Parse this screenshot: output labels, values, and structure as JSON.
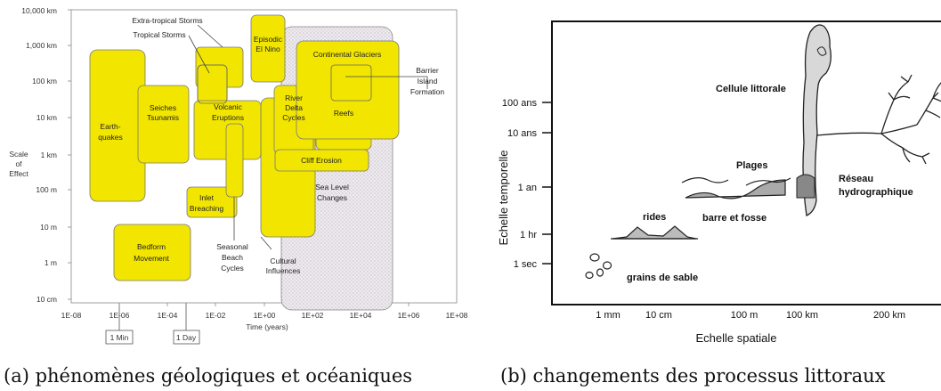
{
  "panel_a": {
    "y_axis_title": [
      "Scale",
      "of",
      "Effect"
    ],
    "y_ticks": [
      "10,000 km",
      "1,000 km",
      "100 km",
      "10 km",
      "1 km",
      "100 m",
      "10 m",
      "1 m",
      "10 cm"
    ],
    "x_ticks": [
      "1E-08",
      "1E-06",
      "1E-04",
      "1E-02",
      "1E+00",
      "1E+02",
      "1E+04",
      "1E+06",
      "1E+08"
    ],
    "x_axis_title": "Time (years)",
    "ref_boxes": [
      "1 Min",
      "1 Day"
    ],
    "phenomena": {
      "extratropical_storms": "Extra-tropical Storms",
      "tropical_storms": "Tropical Storms",
      "episodic_el_nino": [
        "Episodic",
        "El Nino"
      ],
      "continental_glaciers": "Continental Glaciers",
      "barrier_island": [
        "Barrier",
        "Island",
        "Formation"
      ],
      "seiches": [
        "Seiches",
        "Tsunamis"
      ],
      "earthquakes": [
        "Earth-",
        "quakes"
      ],
      "volcanic": [
        "Volcanic",
        "Eruptions"
      ],
      "river_delta": [
        "River",
        "Delta",
        "Cycles"
      ],
      "reefs": "Reefs",
      "cliff_erosion": "Cliff Erosion",
      "sea_level": [
        "Sea Level",
        "Changes"
      ],
      "inlet": [
        "Inlet",
        "Breaching"
      ],
      "bedform": [
        "Bedform",
        "Movement"
      ],
      "seasonal_beach": [
        "Seasonal",
        "Beach",
        "Cycles"
      ],
      "cultural": [
        "Cultural",
        "Influences"
      ]
    },
    "colors": {
      "fill": "#f2e600",
      "stroke": "#777777",
      "sea_level_fill": "#ece8ec"
    }
  },
  "panel_b": {
    "y_axis_title": "Echelle temporelle",
    "x_axis_title": "Echelle spatiale",
    "y_ticks": [
      "100 ans",
      "10 ans",
      "1 an",
      "1 hr",
      "1 sec"
    ],
    "x_ticks": [
      "1 mm",
      "10 cm",
      "100 m",
      "100 km",
      "200 km"
    ],
    "labels": {
      "cellule": "Cellule littorale",
      "plages": "Plages",
      "reseau": [
        "Réseau",
        "hydrographique"
      ],
      "rides": "rides",
      "barre": "barre et fosse",
      "grains": "grains de sable"
    }
  },
  "captions": {
    "a": "(a) phénomènes géologiques et océaniques",
    "b": "(b) changements des processus littoraux"
  }
}
